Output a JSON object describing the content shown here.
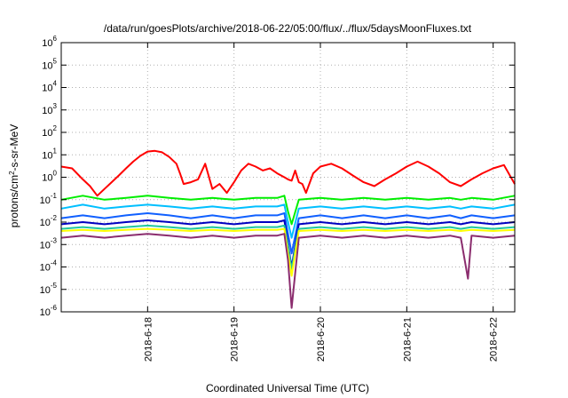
{
  "chart_data": {
    "type": "line",
    "title": "/data/run/goesPlots/archive/2018-06-22/05:00/flux/../flux/5daysMoonFluxes.txt",
    "xlabel": "Coordinated Universal Time (UTC)",
    "ylabel": {
      "prefix": "protons/cm",
      "superscript": "2",
      "suffix": "-s-sr-MeV"
    },
    "yscale": "log",
    "ylim": [
      1e-06,
      1000000.0
    ],
    "ytick_exponents": [
      -6,
      -5,
      -4,
      -3,
      -2,
      -1,
      0,
      1,
      2,
      3,
      4,
      5,
      6
    ],
    "ytick_base": "10",
    "xlim": [
      "2018-06-17T00:00",
      "2018-06-22T06:00"
    ],
    "xticks": [
      {
        "date": "2018-06-18T00:00",
        "label": "2018-6-18"
      },
      {
        "date": "2018-06-19T00:00",
        "label": "2018-6-19"
      },
      {
        "date": "2018-06-20T00:00",
        "label": "2018-6-20"
      },
      {
        "date": "2018-06-21T00:00",
        "label": "2018-6-21"
      },
      {
        "date": "2018-06-22T00:00",
        "label": "2018-6-22"
      }
    ],
    "grid": true,
    "grid_style": "dotted",
    "legend": "none",
    "series": [
      {
        "color": "#ff0000",
        "x": [
          "2018-06-17T00:00",
          "2018-06-17T03:00",
          "2018-06-17T06:00",
          "2018-06-17T08:00",
          "2018-06-17T10:00",
          "2018-06-17T12:00",
          "2018-06-17T14:00",
          "2018-06-17T16:00",
          "2018-06-17T18:00",
          "2018-06-17T20:00",
          "2018-06-17T22:00",
          "2018-06-18T00:00",
          "2018-06-18T02:00",
          "2018-06-18T04:00",
          "2018-06-18T06:00",
          "2018-06-18T08:00",
          "2018-06-18T09:00",
          "2018-06-18T10:00",
          "2018-06-18T12:00",
          "2018-06-18T14:00",
          "2018-06-18T16:00",
          "2018-06-18T18:00",
          "2018-06-18T20:00",
          "2018-06-18T22:00",
          "2018-06-19T00:00",
          "2018-06-19T02:00",
          "2018-06-19T04:00",
          "2018-06-19T06:00",
          "2018-06-19T08:00",
          "2018-06-19T10:00",
          "2018-06-19T12:00",
          "2018-06-19T14:00",
          "2018-06-19T15:00",
          "2018-06-19T16:00",
          "2018-06-19T17:00",
          "2018-06-19T18:00",
          "2018-06-19T19:00",
          "2018-06-19T20:00",
          "2018-06-19T22:00",
          "2018-06-20T00:00",
          "2018-06-20T03:00",
          "2018-06-20T06:00",
          "2018-06-20T09:00",
          "2018-06-20T12:00",
          "2018-06-20T15:00",
          "2018-06-20T18:00",
          "2018-06-20T21:00",
          "2018-06-21T00:00",
          "2018-06-21T03:00",
          "2018-06-21T06:00",
          "2018-06-21T09:00",
          "2018-06-21T12:00",
          "2018-06-21T15:00",
          "2018-06-21T18:00",
          "2018-06-21T21:00",
          "2018-06-22T00:00",
          "2018-06-22T03:00",
          "2018-06-22T06:00"
        ],
        "y": [
          3,
          2.5,
          0.8,
          0.4,
          0.15,
          0.3,
          0.6,
          1.2,
          2.5,
          5,
          9,
          14,
          15,
          13,
          8,
          4,
          1.5,
          0.5,
          0.6,
          0.8,
          4,
          0.3,
          0.5,
          0.2,
          0.6,
          2,
          4,
          3,
          2,
          2.5,
          1.5,
          1,
          0.8,
          0.7,
          2,
          0.6,
          0.5,
          0.2,
          1.5,
          3,
          4,
          2.5,
          1.2,
          0.6,
          0.4,
          0.8,
          1.5,
          3,
          5,
          3,
          1.5,
          0.6,
          0.4,
          0.8,
          1.5,
          2.5,
          3.5,
          0.5
        ]
      },
      {
        "color": "#00ee00",
        "x": [
          "2018-06-17T00:00",
          "2018-06-17T06:00",
          "2018-06-17T12:00",
          "2018-06-17T18:00",
          "2018-06-18T00:00",
          "2018-06-18T06:00",
          "2018-06-18T12:00",
          "2018-06-18T18:00",
          "2018-06-19T00:00",
          "2018-06-19T06:00",
          "2018-06-19T12:00",
          "2018-06-19T14:00",
          "2018-06-19T15:00",
          "2018-06-19T16:00",
          "2018-06-19T18:00",
          "2018-06-20T00:00",
          "2018-06-20T06:00",
          "2018-06-20T12:00",
          "2018-06-20T18:00",
          "2018-06-21T00:00",
          "2018-06-21T06:00",
          "2018-06-21T12:00",
          "2018-06-21T15:00",
          "2018-06-21T18:00",
          "2018-06-22T00:00",
          "2018-06-22T06:00"
        ],
        "y": [
          0.1,
          0.15,
          0.1,
          0.12,
          0.15,
          0.12,
          0.1,
          0.12,
          0.1,
          0.12,
          0.12,
          0.15,
          0.03,
          0.008,
          0.1,
          0.12,
          0.1,
          0.12,
          0.1,
          0.12,
          0.1,
          0.12,
          0.1,
          0.12,
          0.1,
          0.15
        ]
      },
      {
        "color": "#00bfff",
        "x": [
          "2018-06-17T00:00",
          "2018-06-17T06:00",
          "2018-06-17T12:00",
          "2018-06-17T18:00",
          "2018-06-18T00:00",
          "2018-06-18T06:00",
          "2018-06-18T12:00",
          "2018-06-18T18:00",
          "2018-06-19T00:00",
          "2018-06-19T06:00",
          "2018-06-19T12:00",
          "2018-06-19T14:00",
          "2018-06-19T15:00",
          "2018-06-19T16:00",
          "2018-06-19T18:00",
          "2018-06-20T00:00",
          "2018-06-20T06:00",
          "2018-06-20T12:00",
          "2018-06-20T18:00",
          "2018-06-21T00:00",
          "2018-06-21T06:00",
          "2018-06-21T12:00",
          "2018-06-21T15:00",
          "2018-06-21T18:00",
          "2018-06-22T00:00",
          "2018-06-22T06:00"
        ],
        "y": [
          0.04,
          0.06,
          0.04,
          0.05,
          0.06,
          0.05,
          0.04,
          0.05,
          0.04,
          0.05,
          0.05,
          0.06,
          0.01,
          0.002,
          0.04,
          0.05,
          0.04,
          0.05,
          0.04,
          0.05,
          0.04,
          0.05,
          0.04,
          0.05,
          0.04,
          0.06
        ]
      },
      {
        "color": "#1060ff",
        "x": [
          "2018-06-17T00:00",
          "2018-06-17T06:00",
          "2018-06-17T12:00",
          "2018-06-17T18:00",
          "2018-06-18T00:00",
          "2018-06-18T06:00",
          "2018-06-18T12:00",
          "2018-06-18T18:00",
          "2018-06-19T00:00",
          "2018-06-19T06:00",
          "2018-06-19T12:00",
          "2018-06-19T14:00",
          "2018-06-19T15:00",
          "2018-06-19T16:00",
          "2018-06-19T18:00",
          "2018-06-20T00:00",
          "2018-06-20T06:00",
          "2018-06-20T12:00",
          "2018-06-20T18:00",
          "2018-06-21T00:00",
          "2018-06-21T06:00",
          "2018-06-21T12:00",
          "2018-06-21T15:00",
          "2018-06-21T18:00",
          "2018-06-22T00:00",
          "2018-06-22T06:00"
        ],
        "y": [
          0.015,
          0.02,
          0.015,
          0.02,
          0.025,
          0.02,
          0.015,
          0.02,
          0.015,
          0.02,
          0.02,
          0.025,
          0.003,
          0.0004,
          0.015,
          0.02,
          0.015,
          0.02,
          0.015,
          0.02,
          0.015,
          0.02,
          0.015,
          0.02,
          0.015,
          0.02
        ]
      },
      {
        "color": "#0000c0",
        "x": [
          "2018-06-17T00:00",
          "2018-06-17T06:00",
          "2018-06-17T12:00",
          "2018-06-17T18:00",
          "2018-06-18T00:00",
          "2018-06-18T06:00",
          "2018-06-18T12:00",
          "2018-06-18T18:00",
          "2018-06-19T00:00",
          "2018-06-19T06:00",
          "2018-06-19T12:00",
          "2018-06-19T14:00",
          "2018-06-19T15:00",
          "2018-06-19T16:00",
          "2018-06-19T18:00",
          "2018-06-20T00:00",
          "2018-06-20T06:00",
          "2018-06-20T12:00",
          "2018-06-20T18:00",
          "2018-06-21T00:00",
          "2018-06-21T06:00",
          "2018-06-21T12:00",
          "2018-06-21T15:00",
          "2018-06-21T18:00",
          "2018-06-22T00:00",
          "2018-06-22T06:00"
        ],
        "y": [
          0.008,
          0.01,
          0.008,
          0.01,
          0.012,
          0.01,
          0.008,
          0.01,
          0.008,
          0.01,
          0.01,
          0.012,
          0.001,
          0.0001,
          0.008,
          0.01,
          0.008,
          0.01,
          0.008,
          0.01,
          0.008,
          0.01,
          0.008,
          0.01,
          0.008,
          0.01
        ]
      },
      {
        "color": "#20c8a0",
        "x": [
          "2018-06-17T00:00",
          "2018-06-17T06:00",
          "2018-06-17T12:00",
          "2018-06-17T18:00",
          "2018-06-18T00:00",
          "2018-06-18T06:00",
          "2018-06-18T12:00",
          "2018-06-18T18:00",
          "2018-06-19T00:00",
          "2018-06-19T06:00",
          "2018-06-19T12:00",
          "2018-06-19T14:00",
          "2018-06-19T15:00",
          "2018-06-19T16:00",
          "2018-06-19T18:00",
          "2018-06-20T00:00",
          "2018-06-20T06:00",
          "2018-06-20T12:00",
          "2018-06-20T18:00",
          "2018-06-21T00:00",
          "2018-06-21T06:00",
          "2018-06-21T12:00",
          "2018-06-21T15:00",
          "2018-06-21T18:00",
          "2018-06-22T00:00",
          "2018-06-22T06:00"
        ],
        "y": [
          0.005,
          0.006,
          0.005,
          0.006,
          0.007,
          0.006,
          0.005,
          0.006,
          0.005,
          0.006,
          0.006,
          0.007,
          0.0008,
          8e-05,
          0.005,
          0.006,
          0.005,
          0.006,
          0.005,
          0.006,
          0.005,
          0.006,
          0.005,
          0.006,
          0.005,
          0.006
        ]
      },
      {
        "color": "#ffff00",
        "x": [
          "2018-06-17T00:00",
          "2018-06-17T06:00",
          "2018-06-17T12:00",
          "2018-06-17T18:00",
          "2018-06-18T00:00",
          "2018-06-18T06:00",
          "2018-06-18T12:00",
          "2018-06-18T18:00",
          "2018-06-19T00:00",
          "2018-06-19T06:00",
          "2018-06-19T12:00",
          "2018-06-19T14:00",
          "2018-06-19T15:00",
          "2018-06-19T16:00",
          "2018-06-19T18:00",
          "2018-06-20T00:00",
          "2018-06-20T06:00",
          "2018-06-20T12:00",
          "2018-06-20T18:00",
          "2018-06-21T00:00",
          "2018-06-21T06:00",
          "2018-06-21T12:00",
          "2018-06-21T15:00",
          "2018-06-21T18:00",
          "2018-06-22T00:00",
          "2018-06-22T06:00"
        ],
        "y": [
          0.004,
          0.0045,
          0.004,
          0.0045,
          0.005,
          0.0045,
          0.004,
          0.0045,
          0.004,
          0.0045,
          0.0045,
          0.005,
          0.0004,
          4e-05,
          0.004,
          0.0045,
          0.004,
          0.0045,
          0.004,
          0.0045,
          0.004,
          0.0045,
          0.004,
          0.0045,
          0.004,
          0.0045
        ]
      },
      {
        "color": "#8b2d6e",
        "x": [
          "2018-06-17T00:00",
          "2018-06-17T06:00",
          "2018-06-17T12:00",
          "2018-06-17T18:00",
          "2018-06-18T00:00",
          "2018-06-18T06:00",
          "2018-06-18T12:00",
          "2018-06-18T18:00",
          "2018-06-19T00:00",
          "2018-06-19T06:00",
          "2018-06-19T12:00",
          "2018-06-19T14:00",
          "2018-06-19T15:00",
          "2018-06-19T16:00",
          "2018-06-19T18:00",
          "2018-06-20T00:00",
          "2018-06-20T06:00",
          "2018-06-20T12:00",
          "2018-06-20T18:00",
          "2018-06-21T00:00",
          "2018-06-21T06:00",
          "2018-06-21T12:00",
          "2018-06-21T15:00",
          "2018-06-21T17:00",
          "2018-06-21T18:00",
          "2018-06-22T00:00",
          "2018-06-22T06:00"
        ],
        "y": [
          0.002,
          0.0025,
          0.002,
          0.0025,
          0.003,
          0.0025,
          0.002,
          0.0025,
          0.002,
          0.0025,
          0.0025,
          0.003,
          0.0002,
          1.5e-06,
          0.002,
          0.0025,
          0.002,
          0.0025,
          0.002,
          0.0025,
          0.002,
          0.0025,
          0.002,
          3e-05,
          0.0025,
          0.002,
          0.0025
        ]
      }
    ]
  }
}
